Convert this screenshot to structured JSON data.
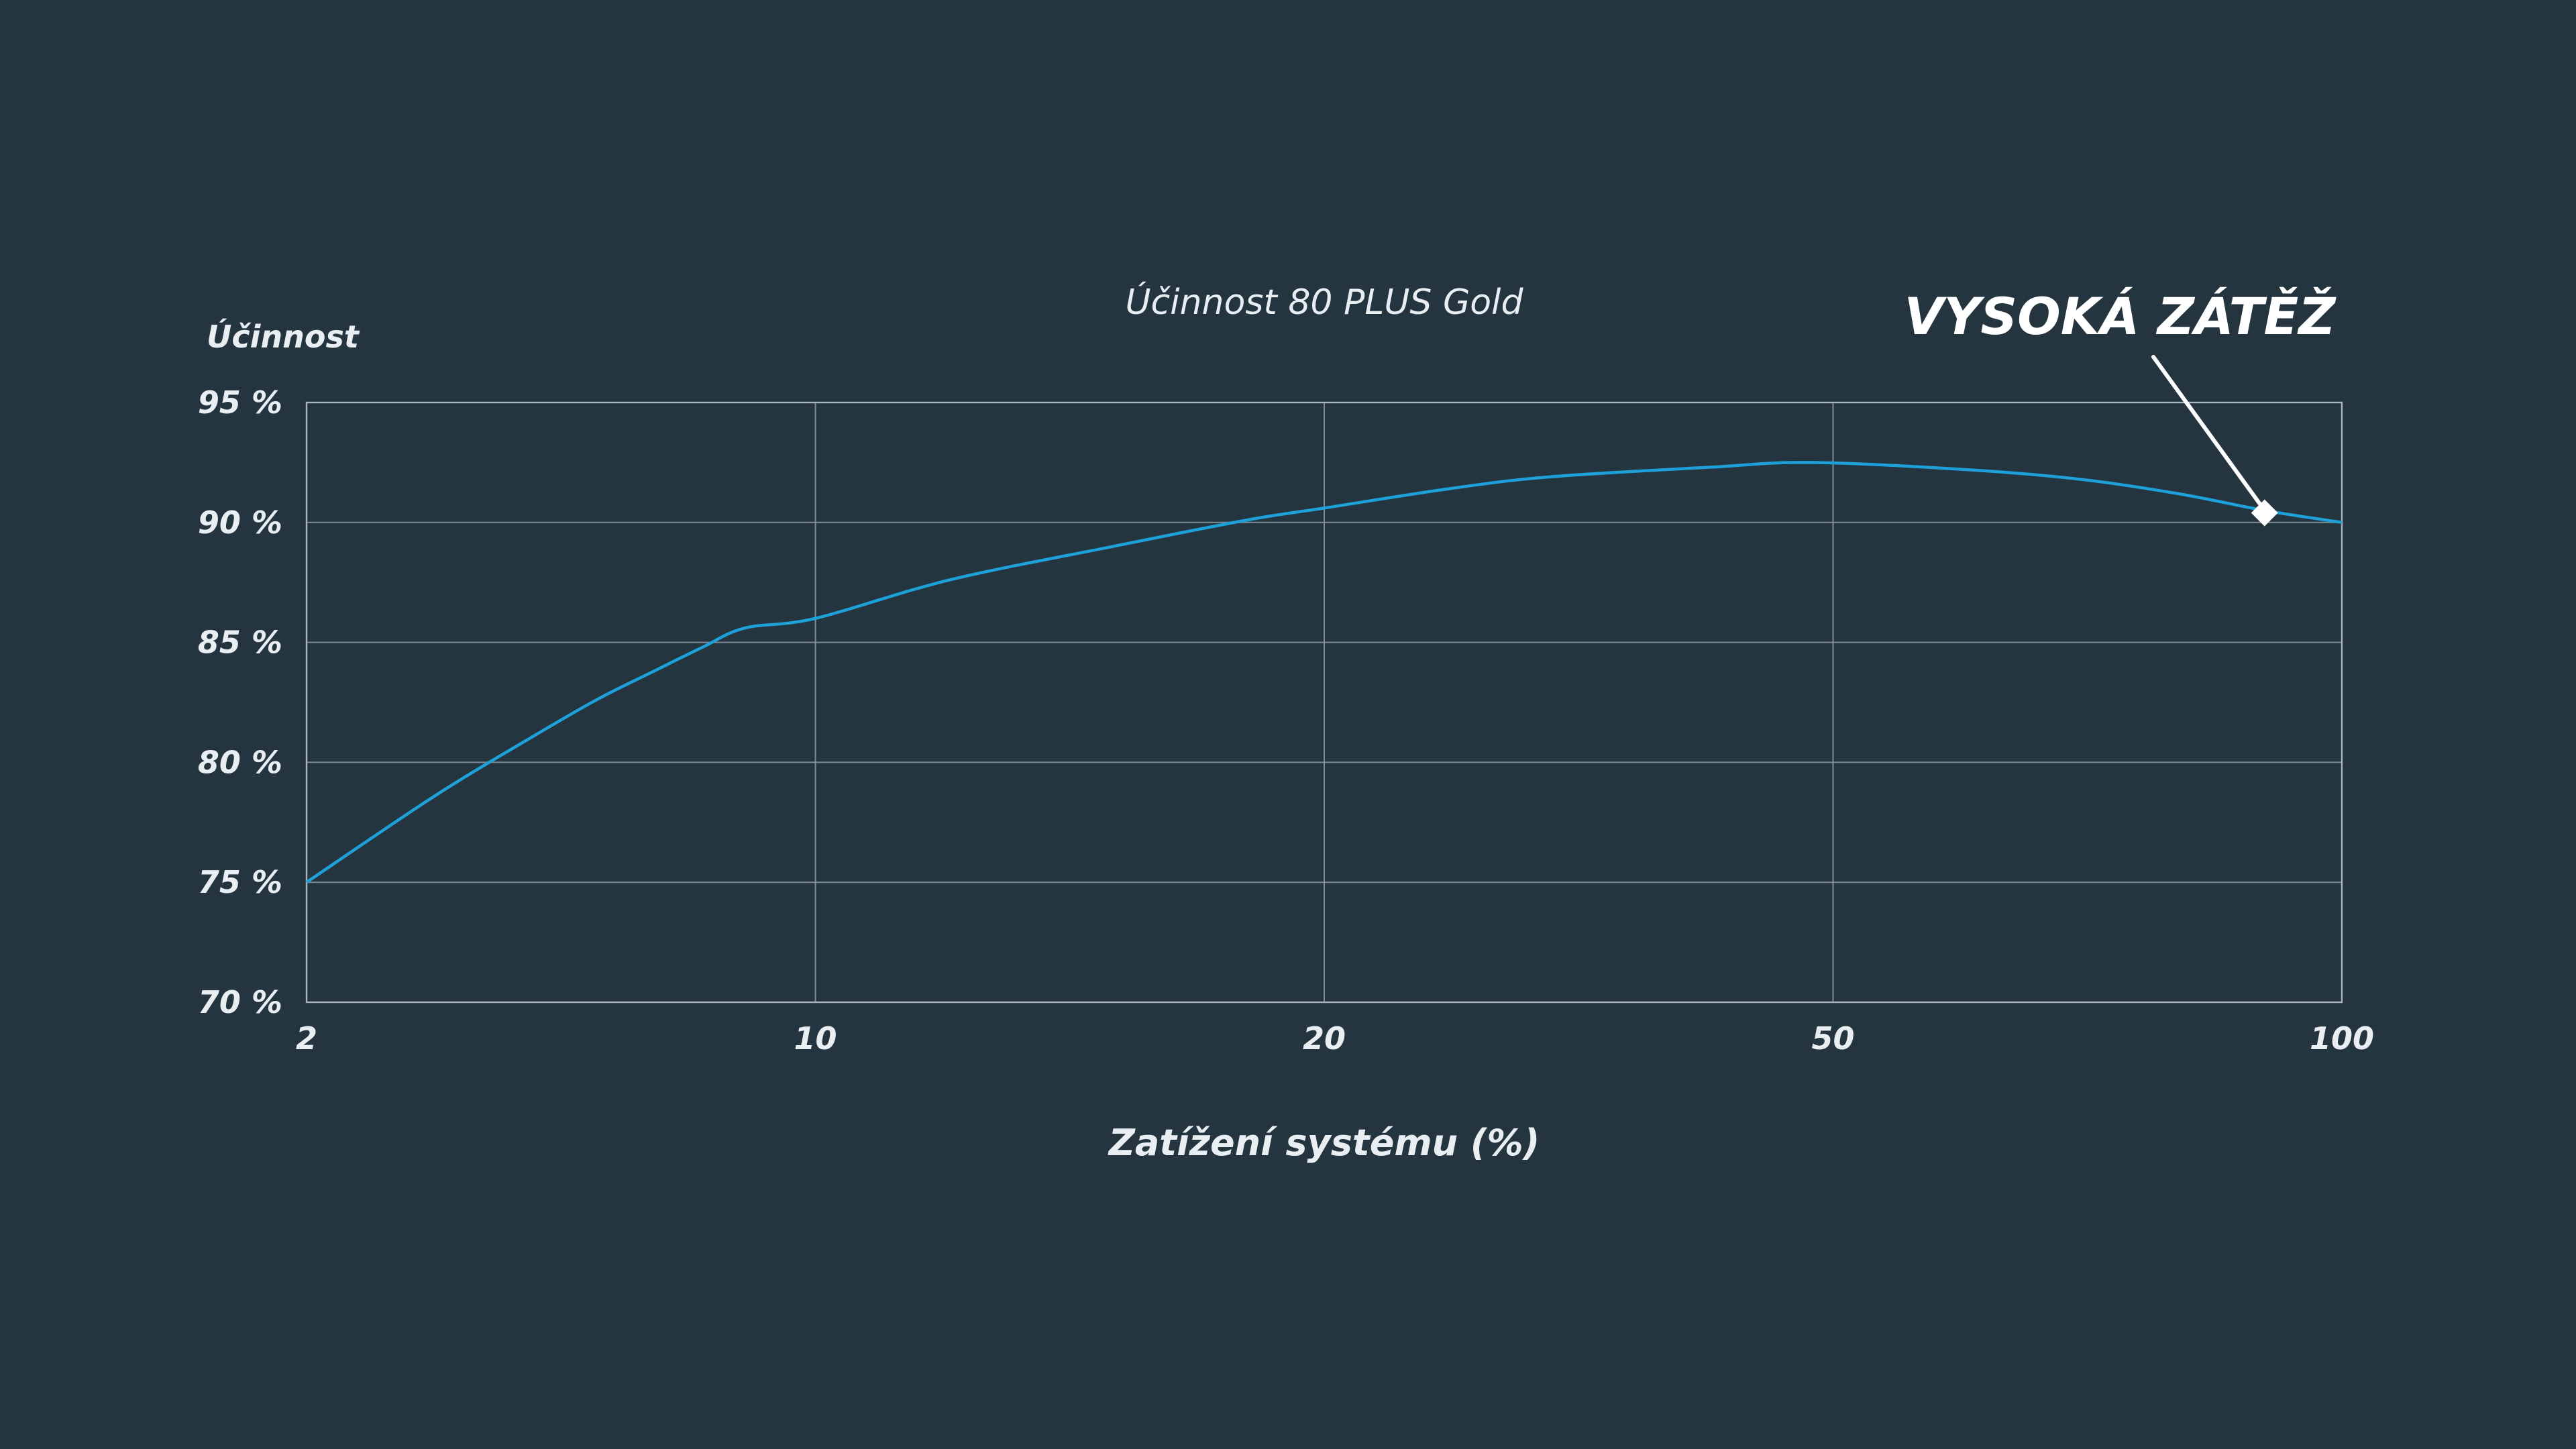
{
  "chart_data": {
    "type": "line",
    "title": "Účinnost 80 PLUS Gold",
    "ylabel": "Účinnost",
    "xlabel": "Zatížení systému (%)",
    "x_scale": "log",
    "x_ticks": [
      2,
      10,
      20,
      50,
      100
    ],
    "x_tick_labels": [
      "2",
      "10",
      "20",
      "50",
      "100"
    ],
    "y_ticks": [
      70,
      75,
      80,
      85,
      90,
      95
    ],
    "y_tick_labels": [
      "70 %",
      "75 %",
      "80 %",
      "85 %",
      "90 %",
      "95 %"
    ],
    "xlim": [
      2,
      100
    ],
    "ylim": [
      70,
      95
    ],
    "grid": true,
    "series": [
      {
        "color": "#1da1d8",
        "x": [
          2,
          3,
          4,
          5,
          6,
          7,
          8,
          10,
          12,
          15,
          18,
          20,
          25,
          30,
          40,
          48,
          60,
          70,
          80,
          90,
          100
        ],
        "y": [
          75.0,
          78.6,
          80.9,
          82.6,
          83.8,
          84.8,
          85.6,
          86.0,
          87.6,
          89.0,
          90.1,
          90.6,
          91.4,
          91.9,
          92.3,
          92.5,
          92.2,
          91.8,
          91.2,
          90.5,
          90.0
        ]
      }
    ],
    "annotations": [
      {
        "text": "VYSOKÁ ZÁTĚŽ",
        "x": 90,
        "y": 90.4,
        "marker": "diamond",
        "color": "#ffffff"
      }
    ]
  }
}
